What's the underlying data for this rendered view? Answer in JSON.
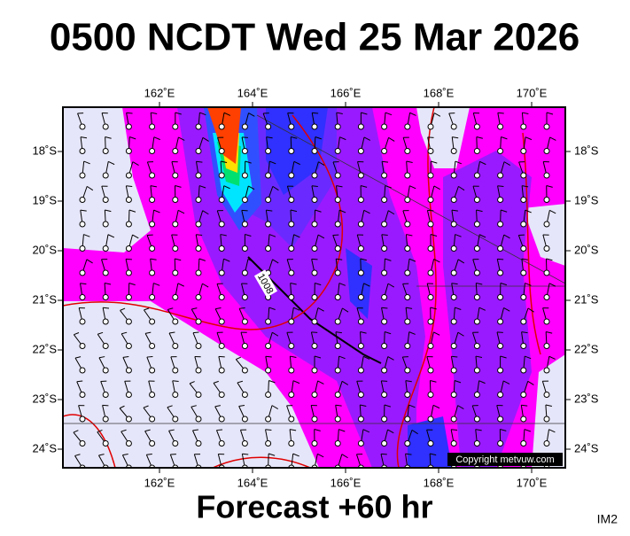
{
  "header": {
    "title": "0500 NCDT Wed 25 Mar 2026"
  },
  "map": {
    "lon_labels": [
      "162˚E",
      "164˚E",
      "166˚E",
      "168˚E",
      "170˚E"
    ],
    "lat_labels": [
      "18˚S",
      "19˚S",
      "20˚S",
      "21˚S",
      "22˚S",
      "23˚S",
      "24˚S"
    ],
    "contour_label": "1008",
    "copyright": "Copyright metvuw.com"
  },
  "footer": {
    "forecast": "Forecast +60 hr",
    "code": "IM2"
  }
}
